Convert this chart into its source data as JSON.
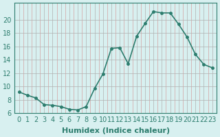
{
  "x": [
    0,
    1,
    2,
    3,
    4,
    5,
    6,
    7,
    8,
    9,
    10,
    11,
    12,
    13,
    14,
    15,
    16,
    17,
    18,
    19,
    20,
    21,
    22,
    23
  ],
  "y": [
    9.2,
    8.7,
    8.3,
    7.3,
    7.2,
    7.0,
    6.6,
    6.5,
    7.0,
    9.7,
    11.9,
    15.7,
    15.8,
    13.4,
    17.5,
    19.4,
    21.2,
    21.0,
    21.0,
    19.3,
    17.4,
    14.8,
    13.3,
    12.8
  ],
  "xlabel": "Humidex (Indice chaleur)",
  "ylim": [
    6,
    22
  ],
  "xlim": [
    0,
    23
  ],
  "yticks": [
    6,
    8,
    10,
    12,
    14,
    16,
    18,
    20
  ],
  "xticks": [
    0,
    1,
    2,
    3,
    4,
    5,
    6,
    7,
    8,
    9,
    10,
    11,
    12,
    13,
    14,
    15,
    16,
    17,
    18,
    19,
    20,
    21,
    22,
    23
  ],
  "line_color": "#2d7d6e",
  "marker_color": "#2d7d6e",
  "bg_color": "#d8f0f0",
  "grid_color_major": "#c0c0c0",
  "grid_color_minor": "#e0c0c0",
  "tick_label_fontsize": 7,
  "xlabel_fontsize": 8
}
